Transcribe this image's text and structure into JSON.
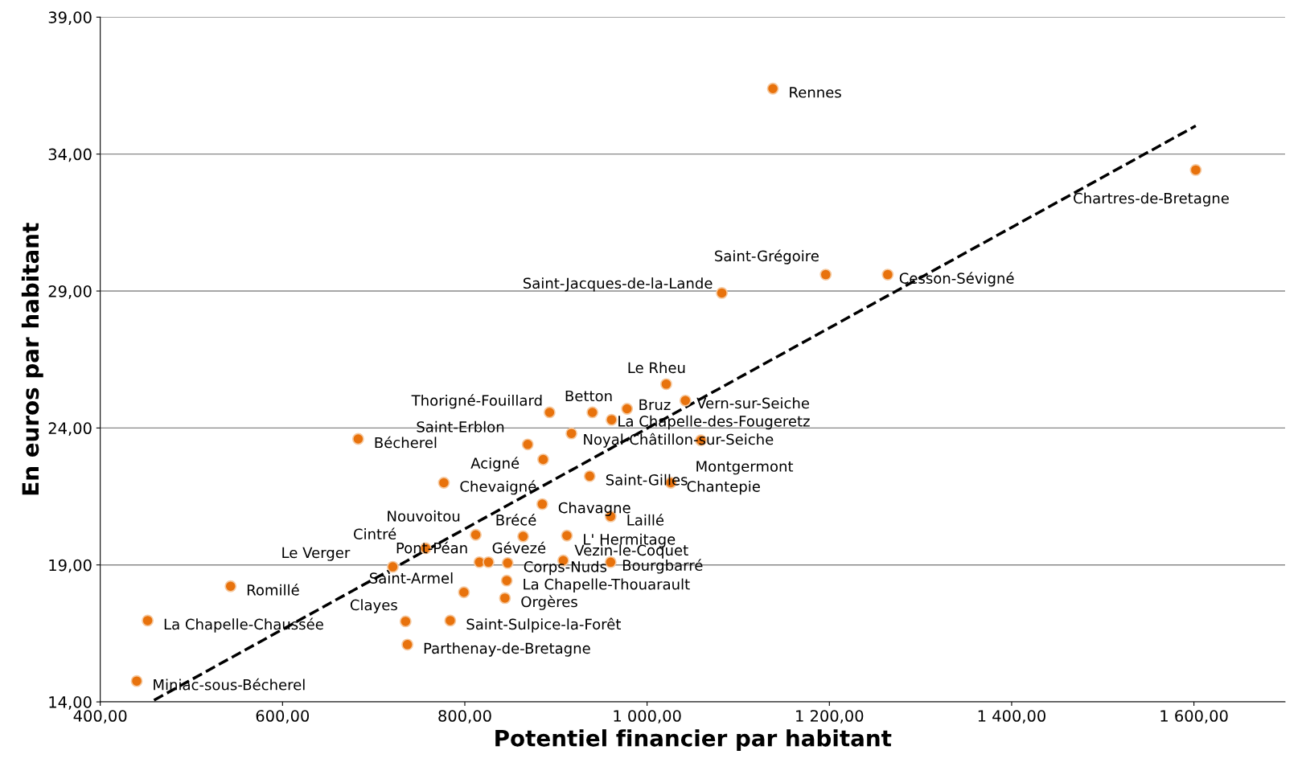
{
  "chart_data": {
    "type": "scatter",
    "xlabel": "Potentiel financier par habitant",
    "ylabel": "En euros par habitant",
    "xlim": [
      400,
      1700
    ],
    "ylim": [
      14,
      39
    ],
    "xticks": [
      {
        "value": 400,
        "label": "400,00"
      },
      {
        "value": 600,
        "label": "600,00"
      },
      {
        "value": 800,
        "label": "800,00"
      },
      {
        "value": 1000,
        "label": "1 000,00"
      },
      {
        "value": 1200,
        "label": "1 200,00"
      },
      {
        "value": 1400,
        "label": "1 400,00"
      },
      {
        "value": 1600,
        "label": "1 600,00"
      }
    ],
    "yticks": [
      {
        "value": 14,
        "label": "14,00"
      },
      {
        "value": 19,
        "label": "19,00"
      },
      {
        "value": 24,
        "label": "24,00"
      },
      {
        "value": 29,
        "label": "29,00"
      },
      {
        "value": 34,
        "label": "34,00"
      },
      {
        "value": 39,
        "label": "39,00"
      }
    ],
    "grid": "y",
    "legend": false,
    "series": [
      {
        "color": "#e8720c",
        "marker": "circle",
        "x": [
          1138,
          1602,
          1196,
          1264,
          1082,
          1021,
          1042,
          978,
          961,
          940,
          893,
          917,
          869,
          1059,
          683,
          886,
          937,
          1026,
          777,
          885,
          960,
          812,
          864,
          912,
          757,
          908,
          816,
          826,
          847,
          960,
          721,
          543,
          846,
          799,
          844,
          452,
          735,
          784,
          737,
          440
        ],
        "values": [
          36.39,
          33.42,
          29.6,
          29.6,
          28.93,
          25.6,
          25.0,
          24.7,
          24.3,
          24.57,
          24.57,
          23.8,
          23.4,
          23.55,
          23.6,
          22.85,
          22.24,
          22.0,
          22.0,
          21.22,
          20.77,
          20.1,
          20.04,
          20.07,
          19.61,
          19.16,
          19.1,
          19.1,
          19.07,
          19.1,
          18.93,
          18.22,
          18.43,
          18.0,
          17.79,
          16.97,
          16.94,
          16.97,
          16.09,
          14.76
        ]
      },
      {
        "type": "line",
        "color": "#000000",
        "marker": "none",
        "line_style": "dashed",
        "x": [
          459,
          1602
        ],
        "values": [
          14.06,
          35.03
        ]
      }
    ],
    "annotations": [
      {
        "text": "Rennes",
        "x": 1138,
        "y": 36.39
      },
      {
        "text": "Chartres-de-Bretagne",
        "x": 1602,
        "y": 33.42
      },
      {
        "text": "Saint-Grégoire",
        "x": 1196,
        "y": 29.6
      },
      {
        "text": "Cesson-Sévigné",
        "x": 1264,
        "y": 29.6
      },
      {
        "text": "Saint-Jacques-de-la-Lande",
        "x": 1082,
        "y": 28.93
      },
      {
        "text": "Le Rheu",
        "x": 1021,
        "y": 25.6
      },
      {
        "text": "Vern-sur-Seiche",
        "x": 1042,
        "y": 25.0
      },
      {
        "text": "Bruz",
        "x": 978,
        "y": 24.7
      },
      {
        "text": "La Chapelle-des-Fougeretz",
        "x": 961,
        "y": 24.3
      },
      {
        "text": "Betton",
        "x": 940,
        "y": 24.57
      },
      {
        "text": "Thorigné-Fouillard",
        "x": 893,
        "y": 24.57
      },
      {
        "text": "Noyal-Châtillon-sur-Seiche",
        "x": 917,
        "y": 23.8
      },
      {
        "text": "Saint-Erblon",
        "x": 869,
        "y": 23.4
      },
      {
        "text": "Montgermont",
        "x": 1059,
        "y": 23.55
      },
      {
        "text": "Bécherel",
        "x": 683,
        "y": 23.6
      },
      {
        "text": "Acigné",
        "x": 886,
        "y": 22.85
      },
      {
        "text": "Saint-Gilles",
        "x": 937,
        "y": 22.24
      },
      {
        "text": "Chantepie",
        "x": 1026,
        "y": 22.0
      },
      {
        "text": "Chevaigné",
        "x": 777,
        "y": 22.0
      },
      {
        "text": "Chavagne",
        "x": 885,
        "y": 21.22
      },
      {
        "text": "Laillé",
        "x": 960,
        "y": 20.77
      },
      {
        "text": "Nouvoitou",
        "x": 812,
        "y": 20.1
      },
      {
        "text": "Brécé",
        "x": 864,
        "y": 20.04
      },
      {
        "text": "L' Hermitage",
        "x": 912,
        "y": 20.07
      },
      {
        "text": "Cintré",
        "x": 757,
        "y": 19.61
      },
      {
        "text": "Vezin-le-Coquet",
        "x": 908,
        "y": 19.1
      },
      {
        "text": "Pont-Péan",
        "x": 816,
        "y": 19.1
      },
      {
        "text": "Gévezé",
        "x": 826,
        "y": 19.1
      },
      {
        "text": "Corps-Nuds",
        "x": 847,
        "y": 19.07
      },
      {
        "text": "Bourgbarré",
        "x": 960,
        "y": 19.16
      },
      {
        "text": "Le Verger",
        "x": 721,
        "y": 18.93
      },
      {
        "text": "Romillé",
        "x": 543,
        "y": 18.22
      },
      {
        "text": "La Chapelle-Thouarault",
        "x": 846,
        "y": 18.43
      },
      {
        "text": "Saint-Armel",
        "x": 799,
        "y": 18.0
      },
      {
        "text": "Orgères",
        "x": 844,
        "y": 17.79
      },
      {
        "text": "La Chapelle-Chaussée",
        "x": 452,
        "y": 16.97
      },
      {
        "text": "Clayes",
        "x": 735,
        "y": 16.94
      },
      {
        "text": "Saint-Sulpice-la-Forêt",
        "x": 784,
        "y": 16.97
      },
      {
        "text": "Parthenay-de-Bretagne",
        "x": 737,
        "y": 16.09
      },
      {
        "text": "Miniac-sous-Bécherel",
        "x": 440,
        "y": 14.76
      }
    ]
  }
}
